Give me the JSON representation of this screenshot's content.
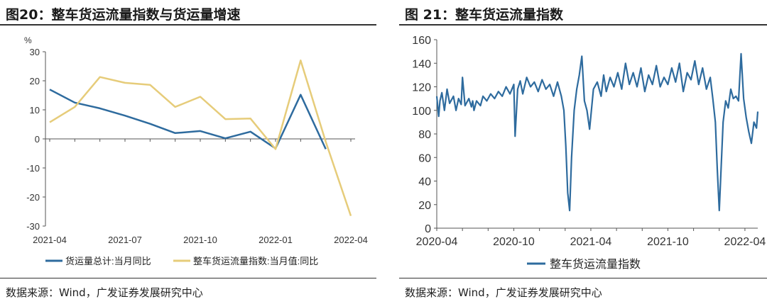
{
  "left": {
    "title": "图20：整车货运流量指数与货运量增速",
    "source": "数据来源：Wind，广发证券发展研究中心",
    "chart_data": {
      "type": "line",
      "y_unit": "%",
      "ylim": [
        -30,
        30
      ],
      "yticks": [
        30,
        20,
        10,
        0,
        -10,
        -20,
        -30
      ],
      "x": [
        "2021-04",
        "2021-05",
        "2021-06",
        "2021-07",
        "2021-08",
        "2021-09",
        "2021-10",
        "2021-11",
        "2021-12",
        "2022-01",
        "2022-02",
        "2022-03",
        "2022-04"
      ],
      "xtick_labels": [
        "2021-04",
        "2021-07",
        "2021-10",
        "2022-01",
        "2022-04"
      ],
      "xtick_index": [
        0,
        3,
        6,
        9,
        12
      ],
      "series": [
        {
          "name": "货运量总计:当月同比",
          "color": "#2e6b9e",
          "values": [
            17,
            12.5,
            10.5,
            8,
            5.2,
            2,
            2.7,
            0.2,
            2.5,
            -3.3,
            15.2,
            -3.5,
            null
          ]
        },
        {
          "name": "整车货运流量指数:当月值:同比",
          "color": "#e6cc7a",
          "values": [
            5.7,
            11,
            21.3,
            19.3,
            18.6,
            11,
            14.5,
            6.8,
            7,
            -3.5,
            27,
            -1,
            -26.5
          ]
        }
      ],
      "legend_position": "bottom",
      "grid": false
    }
  },
  "right": {
    "title": "图 21：整车货运流量指数",
    "source": "数据来源：Wind，广发证券发展研究中心",
    "chart_data": {
      "type": "line",
      "ylim": [
        0,
        160
      ],
      "yticks": [
        160,
        140,
        120,
        100,
        80,
        60,
        40,
        20,
        0
      ],
      "xtick_labels": [
        "2020-04",
        "2020-10",
        "2021-04",
        "2021-10",
        "2022-04"
      ],
      "xtick_month": [
        0,
        6,
        12,
        18,
        24
      ],
      "x_months_span": 25,
      "series": [
        {
          "name": "整车货运流量指数",
          "color": "#2e6b9e",
          "x_month": [
            0,
            0.15,
            0.25,
            0.4,
            0.6,
            0.8,
            1.0,
            1.3,
            1.5,
            1.7,
            1.9,
            2.0,
            2.2,
            2.5,
            2.7,
            2.8,
            2.9,
            3.1,
            3.4,
            3.6,
            3.9,
            4.2,
            4.5,
            4.8,
            5.1,
            5.4,
            5.7,
            6.0,
            6.1,
            6.3,
            6.5,
            6.7,
            7.0,
            7.3,
            7.6,
            7.9,
            8.2,
            8.5,
            8.8,
            9.1,
            9.4,
            9.7,
            9.9,
            10.05,
            10.2,
            10.35,
            10.5,
            10.7,
            10.9,
            11.1,
            11.3,
            11.5,
            11.7,
            11.9,
            12.2,
            12.5,
            12.8,
            13.0,
            13.2,
            13.5,
            13.8,
            14.1,
            14.4,
            14.7,
            15.0,
            15.3,
            15.6,
            15.9,
            16.2,
            16.5,
            16.8,
            17.1,
            17.4,
            17.7,
            18.0,
            18.3,
            18.6,
            18.9,
            19.2,
            19.5,
            19.8,
            20.1,
            20.4,
            20.7,
            21.0,
            21.3,
            21.5,
            21.7,
            21.85,
            22.0,
            22.1,
            22.3,
            22.5,
            22.7,
            22.9,
            23.1,
            23.3,
            23.5,
            23.7,
            23.9,
            24.1,
            24.3,
            24.5,
            24.7,
            24.9,
            25.0
          ],
          "values": [
            112,
            95,
            108,
            115,
            100,
            118,
            106,
            112,
            100,
            110,
            105,
            128,
            104,
            110,
            103,
            108,
            100,
            108,
            104,
            112,
            108,
            114,
            110,
            116,
            112,
            120,
            114,
            122,
            78,
            118,
            125,
            114,
            128,
            120,
            124,
            116,
            126,
            118,
            122,
            112,
            124,
            112,
            100,
            70,
            30,
            15,
            60,
            100,
            118,
            130,
            146,
            108,
            100,
            84,
            118,
            124,
            112,
            130,
            116,
            128,
            120,
            132,
            118,
            140,
            122,
            132,
            120,
            136,
            116,
            130,
            122,
            138,
            120,
            128,
            122,
            136,
            124,
            140,
            116,
            132,
            126,
            142,
            122,
            136,
            118,
            128,
            110,
            90,
            50,
            15,
            40,
            90,
            108,
            102,
            118,
            110,
            112,
            108,
            148,
            110,
            94,
            82,
            72,
            90,
            85,
            99
          ]
        }
      ],
      "legend_position": "bottom",
      "grid": false
    }
  }
}
